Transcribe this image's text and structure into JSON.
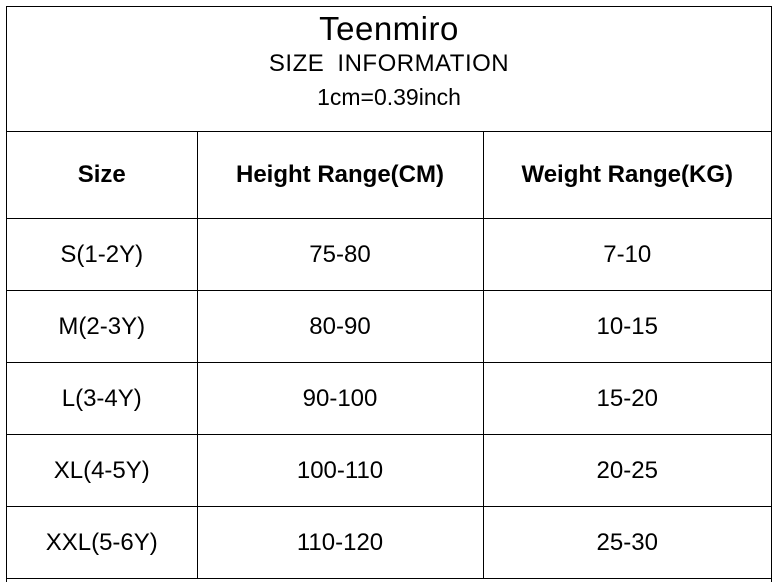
{
  "header": {
    "brand": "Teenmiro",
    "subtitle": "SIZE INFORMATION",
    "conversion": "1cm=0.39inch"
  },
  "table": {
    "columns": [
      "Size",
      "Height Range(CM)",
      "Weight Range(KG)"
    ],
    "rows": [
      [
        "S(1-2Y)",
        "75-80",
        "7-10"
      ],
      [
        "M(2-3Y)",
        "80-90",
        "10-15"
      ],
      [
        "L(3-4Y)",
        "90-100",
        "15-20"
      ],
      [
        "XL(4-5Y)",
        "100-110",
        "20-25"
      ],
      [
        "XXL(5-6Y)",
        "110-120",
        "25-30"
      ]
    ]
  }
}
